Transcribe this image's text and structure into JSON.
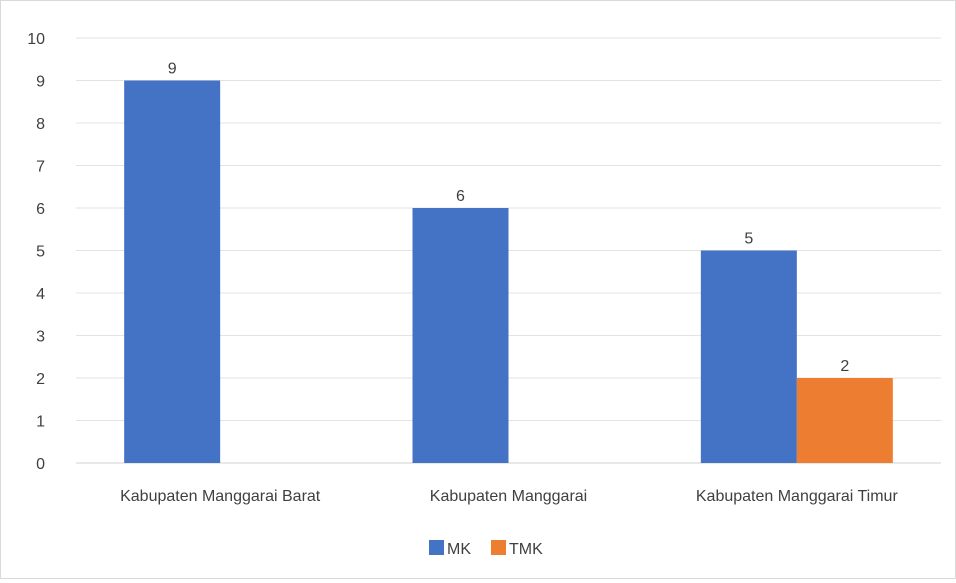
{
  "chart_data": {
    "type": "bar",
    "categories": [
      "Kabupaten Manggarai Barat",
      "Kabupaten Manggarai",
      "Kabupaten Manggarai Timur"
    ],
    "series": [
      {
        "name": "MK",
        "values": [
          9,
          6,
          5
        ],
        "color": "#4472C4"
      },
      {
        "name": "TMK",
        "values": [
          0,
          0,
          2
        ],
        "color": "#ED7D31"
      }
    ],
    "data_labels": [
      {
        "series": "MK",
        "category": "Kabupaten Manggarai Barat",
        "value": 9
      },
      {
        "series": "MK",
        "category": "Kabupaten Manggarai",
        "value": 6
      },
      {
        "series": "MK",
        "category": "Kabupaten Manggarai Timur",
        "value": 5
      },
      {
        "series": "TMK",
        "category": "Kabupaten Manggarai Timur",
        "value": 2
      }
    ],
    "y_ticks": [
      0,
      1,
      2,
      3,
      4,
      5,
      6,
      7,
      8,
      9,
      10
    ],
    "ylim": [
      0,
      10
    ],
    "grid": true,
    "legend": "bottom-center",
    "title": "",
    "xlabel": "",
    "ylabel": ""
  }
}
